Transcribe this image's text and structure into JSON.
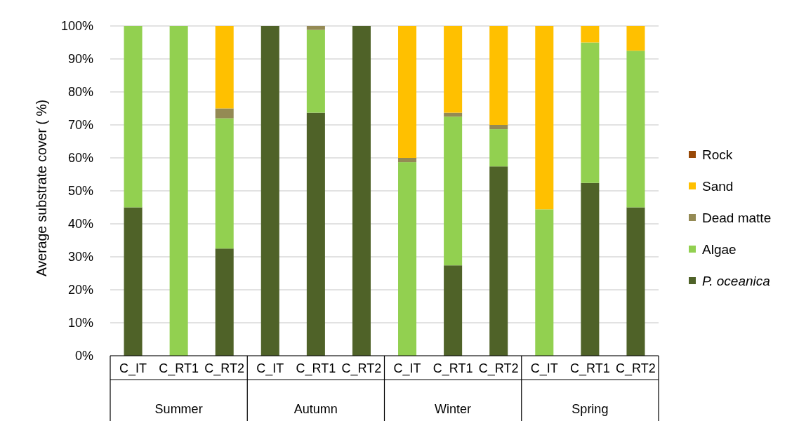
{
  "chart_data": {
    "type": "bar",
    "stacked": true,
    "categories": [
      "C_IT",
      "C_RT1",
      "C_RT2",
      "C_IT",
      "C_RT1",
      "C_RT2",
      "C_IT",
      "C_RT1",
      "C_RT2",
      "C_IT",
      "C_RT1",
      "C_RT2"
    ],
    "series": [
      {
        "name": "P. oceanica",
        "color": "#4f6228",
        "values": [
          45,
          0,
          32.5,
          100,
          73.7,
          100,
          0,
          27.4,
          57.4,
          0,
          52.4,
          45
        ]
      },
      {
        "name": "Algae",
        "color": "#92d050",
        "values": [
          55,
          100,
          39.5,
          0,
          25.1,
          0,
          58.7,
          45.1,
          11.3,
          44.4,
          42.6,
          47.5
        ]
      },
      {
        "name": "Dead matte",
        "color": "#948a54",
        "values": [
          0,
          0,
          3,
          0,
          1.2,
          0,
          1.3,
          1.2,
          1.3,
          0,
          0,
          0
        ]
      },
      {
        "name": "Sand",
        "color": "#ffc000",
        "values": [
          0,
          0,
          25,
          0,
          0,
          0,
          40,
          26.3,
          30,
          55.6,
          5,
          7.5
        ]
      },
      {
        "name": "Rock",
        "color": "#984807",
        "values": [
          0,
          0,
          0,
          0,
          0,
          0,
          0,
          0,
          0,
          0,
          0,
          0
        ]
      }
    ],
    "ylabel": "Average substrate cover ( %)",
    "ylim": [
      0,
      100
    ],
    "yticks": [
      {
        "value": 0,
        "label": "0%"
      },
      {
        "value": 10,
        "label": "10%"
      },
      {
        "value": 20,
        "label": "20%"
      },
      {
        "value": 30,
        "label": "30%"
      },
      {
        "value": 40,
        "label": "40%"
      },
      {
        "value": 50,
        "label": "50%"
      },
      {
        "value": 60,
        "label": "60%"
      },
      {
        "value": 70,
        "label": "70%"
      },
      {
        "value": 80,
        "label": "80%"
      },
      {
        "value": 90,
        "label": "90%"
      },
      {
        "value": 100,
        "label": "100%"
      }
    ],
    "annotations": [
      "Summer",
      "Autumn",
      "Winter",
      "Spring"
    ],
    "grid": "y",
    "legend": "right"
  }
}
